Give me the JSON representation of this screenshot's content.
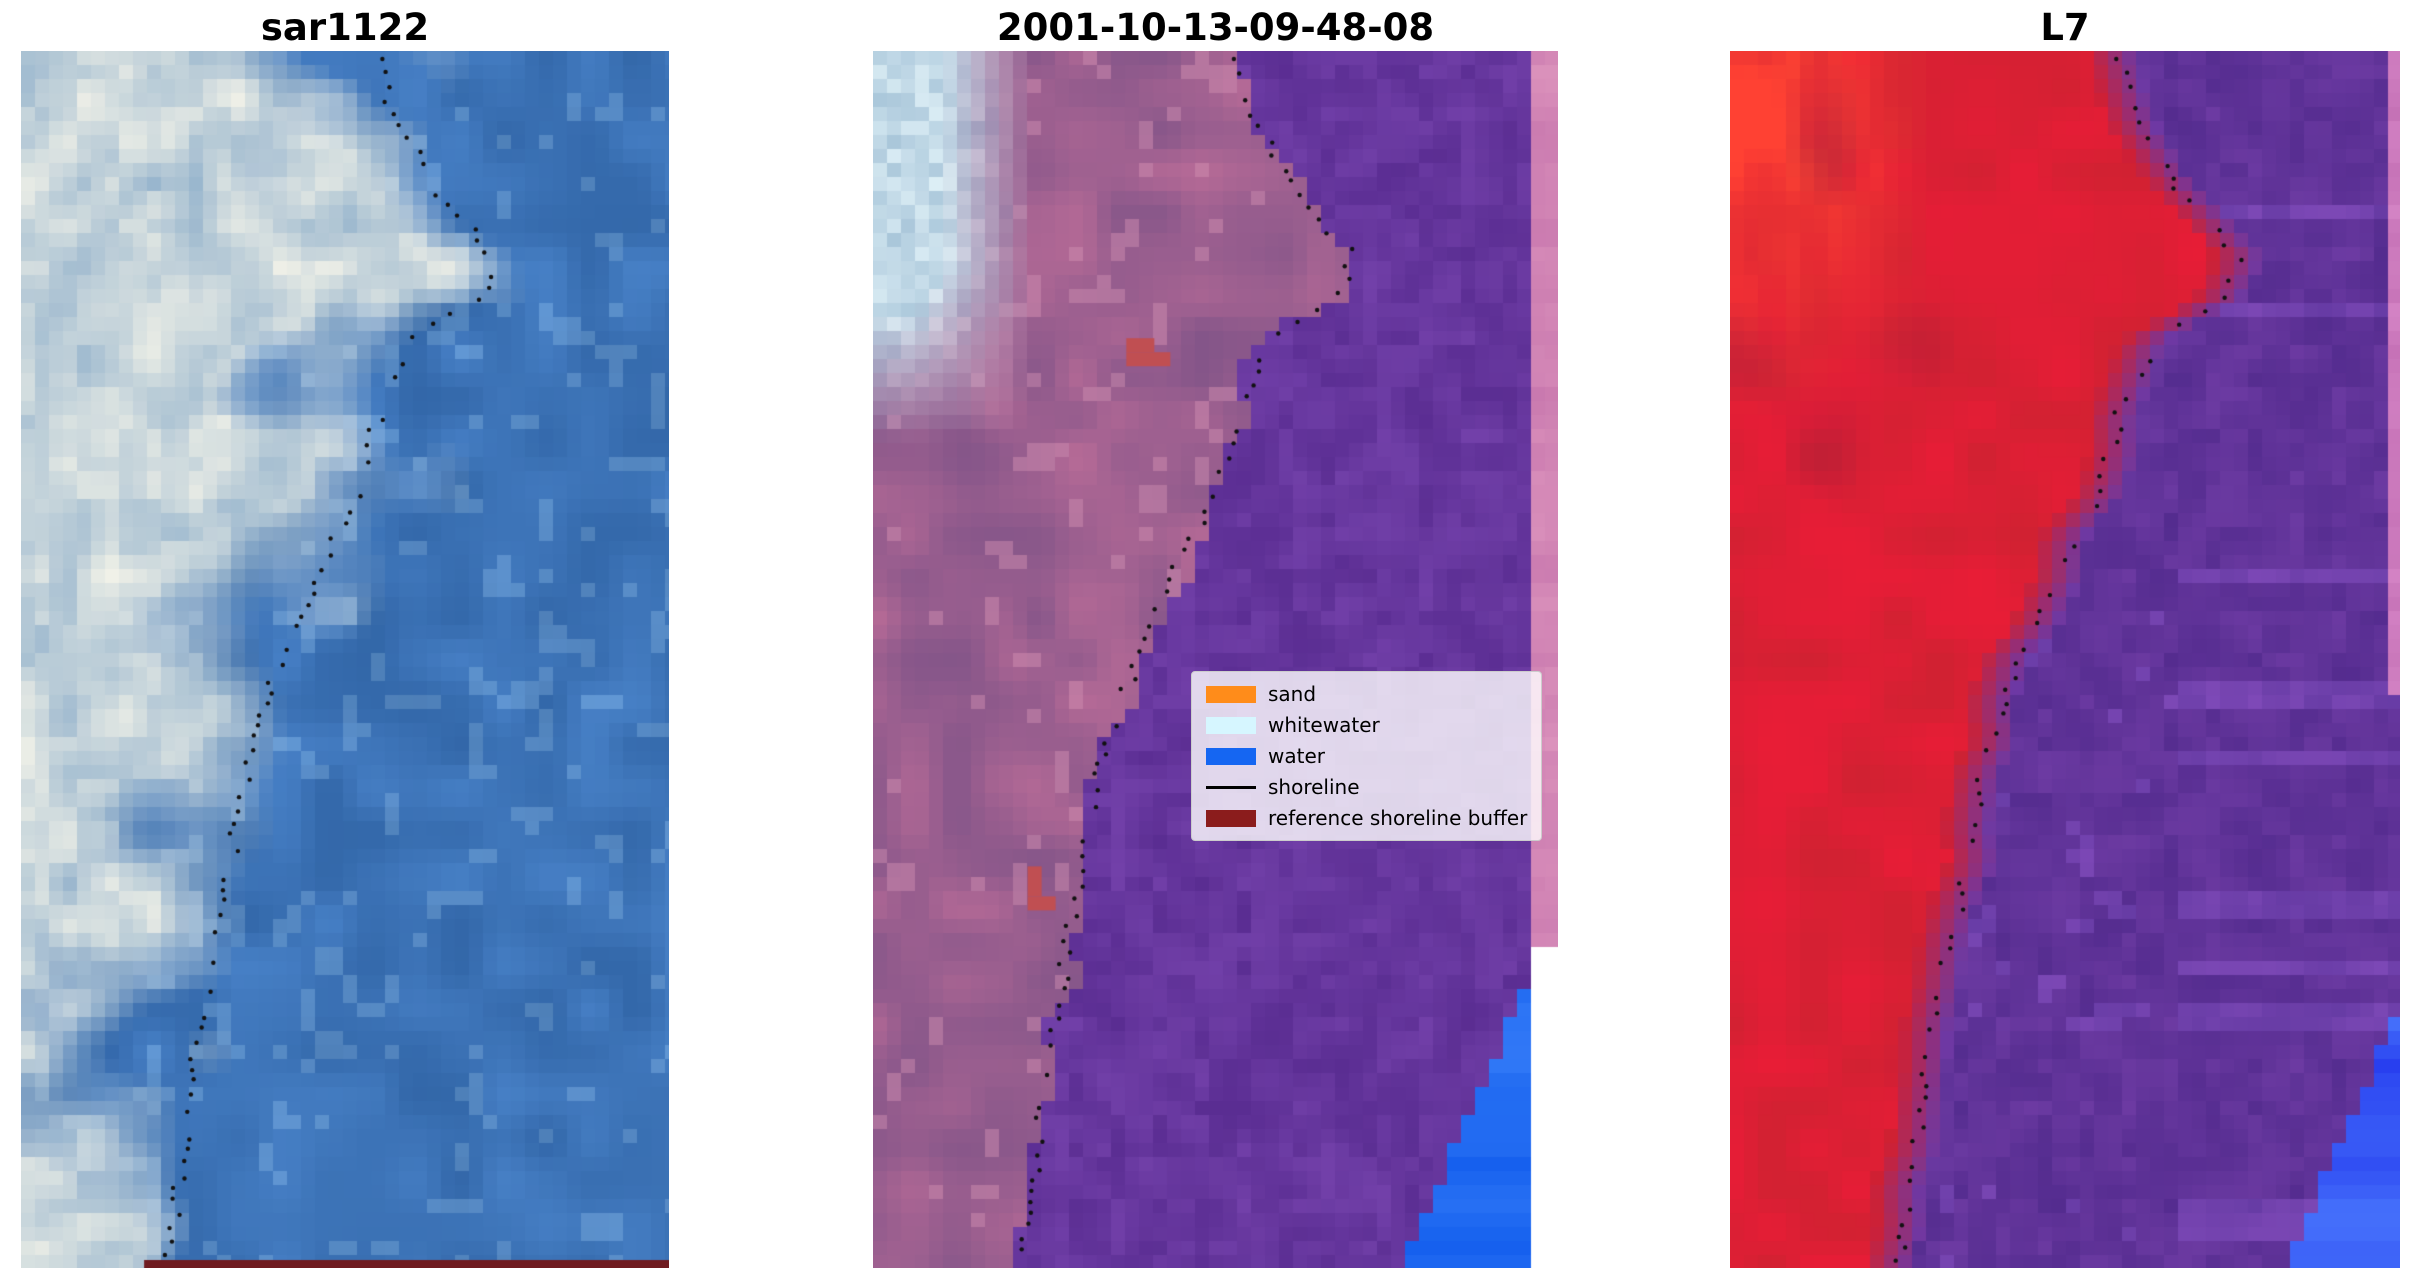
{
  "figure": {
    "background": "#ffffff",
    "title_color": "#000000",
    "panels": [
      {
        "title": "sar1122",
        "kind": "sar-rgb-image",
        "palette": {
          "water": "#4780c6",
          "water_dark": "#2c5f9f",
          "cloud": "#f0f1e8",
          "cloud_blue": "#93b2cc",
          "buffer_strip": "#6f1b20",
          "dots": "#111111"
        }
      },
      {
        "title": "2001-10-13-09-48-08",
        "kind": "classified-image",
        "palette": {
          "land": "#b76b97",
          "land_dark": "#7c5287",
          "water": "#5a2d92",
          "pale_blue": "#a9c6da",
          "pink_strip": "#c877ae",
          "water_blue": "#1560ee",
          "red_patch": "#c04f52",
          "dots": "#111111"
        }
      },
      {
        "title": "L7",
        "kind": "l7-rgb-image",
        "palette": {
          "land_red": "#d02232",
          "land_red_bright": "#ff4133",
          "land_dark": "#8c1c3c",
          "water_purple": "#6d3ba3",
          "pink_strip": "#c36fb4",
          "water_blue": "#2337ee",
          "dots": "#111111"
        }
      }
    ],
    "legend": {
      "items": [
        {
          "label": "sand",
          "swatch": "patch",
          "color": "#ff8c1a"
        },
        {
          "label": "whitewater",
          "swatch": "patch",
          "color": "#d6f6ff"
        },
        {
          "label": "water",
          "swatch": "patch",
          "color": "#1566f2"
        },
        {
          "label": "shoreline",
          "swatch": "line",
          "color": "#000000"
        },
        {
          "label": "reference shoreline buffer",
          "swatch": "patch",
          "color": "#8b1c1c"
        }
      ]
    }
  }
}
